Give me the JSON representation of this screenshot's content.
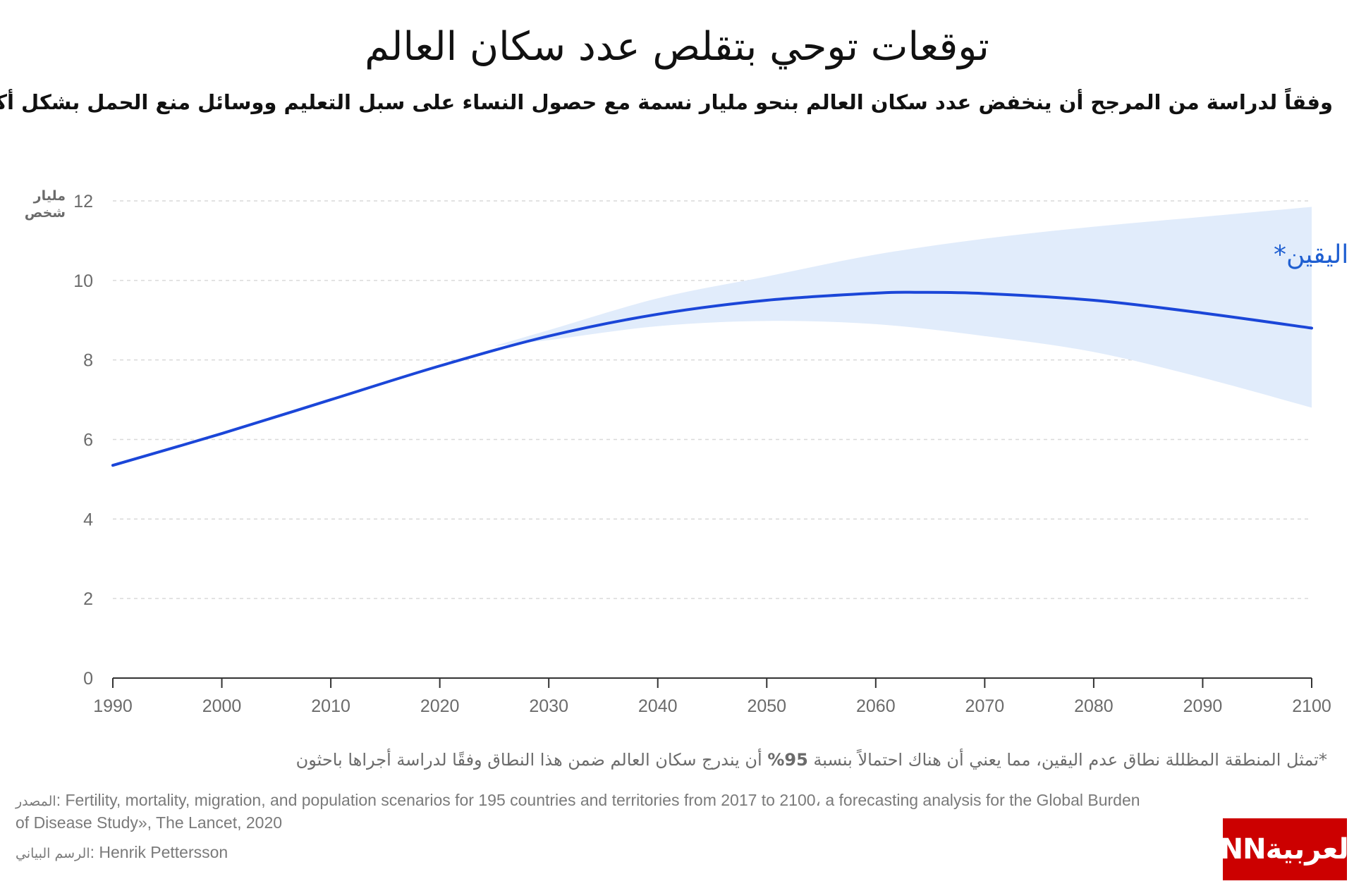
{
  "title": "توقعات توحي بتقلص عدد سكان العالم",
  "subtitle": "وفقاً لدراسة من المرجح أن ينخفض عدد سكان العالم بنحو مليار نسمة مع حصول النساء على سبل التعليم ووسائل منع الحمل بشكل أكبر",
  "colors": {
    "line": "#1b46d8",
    "band": "#e1ecfb",
    "band_label": "#1f5fd1",
    "logo": "#cc0000"
  },
  "chart_data": {
    "type": "line",
    "title": "توقعات توحي بتقلص عدد سكان العالم",
    "xlabel": "",
    "ylabel": "مليار شخص",
    "y_unit_lines": [
      "مليار",
      "شخص"
    ],
    "xlim": [
      1990,
      2100
    ],
    "ylim": [
      0,
      12
    ],
    "grid": true,
    "x_ticks": [
      1990,
      2000,
      2010,
      2020,
      2030,
      2040,
      2050,
      2060,
      2070,
      2080,
      2090,
      2100
    ],
    "y_ticks": [
      0,
      2,
      4,
      6,
      8,
      10,
      12
    ],
    "x": [
      1990,
      2000,
      2010,
      2020,
      2030,
      2040,
      2050,
      2060,
      2064,
      2070,
      2080,
      2090,
      2100
    ],
    "series": [
      {
        "values": [
          5.35,
          6.15,
          7.0,
          7.85,
          8.6,
          9.15,
          9.5,
          9.68,
          9.7,
          9.67,
          9.5,
          9.18,
          8.8
        ]
      }
    ],
    "uncertainty_band": {
      "label": "نطاق عدم اليقين*",
      "x": [
        2025,
        2030,
        2040,
        2050,
        2060,
        2070,
        2080,
        2090,
        2100
      ],
      "upper": [
        8.35,
        8.75,
        9.55,
        10.1,
        10.65,
        11.05,
        11.35,
        11.6,
        11.85
      ],
      "lower": [
        8.35,
        8.5,
        8.85,
        8.98,
        8.9,
        8.6,
        8.2,
        7.55,
        6.8
      ]
    }
  },
  "footnote": {
    "before": "*تمثل المنطقة المظللة نطاق عدم اليقين، مما يعني أن هناك احتمالاً بنسبة ",
    "percent": "95%",
    "after": " أن يندرج سكان العالم ضمن هذا النطاق وفقًا لدراسة أجراها باحثون"
  },
  "source": {
    "prefix": "المصدر",
    "text": ": Fertility, mortality, migration, and population scenarios for 195 countries and territories from 2017 to 2100، a forecasting analysis for the Global Burden of Disease Study», The Lancet, 2020"
  },
  "credit": {
    "prefix": "الرسم البياني",
    "text": ": Henrik Pettersson"
  },
  "logo": {
    "text": "CNNبالعربية"
  }
}
